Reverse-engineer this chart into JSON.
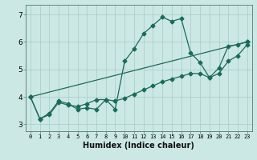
{
  "title": "",
  "xlabel": "Humidex (Indice chaleur)",
  "bg_color": "#cce8e5",
  "grid_color": "#aacfcc",
  "line_color": "#1a6b5a",
  "xmin": -0.5,
  "xmax": 23.5,
  "ymin": 2.75,
  "ymax": 7.35,
  "yticks": [
    3,
    4,
    5,
    6,
    7
  ],
  "xticks": [
    0,
    1,
    2,
    3,
    4,
    5,
    6,
    7,
    8,
    9,
    10,
    11,
    12,
    13,
    14,
    15,
    16,
    17,
    18,
    19,
    20,
    21,
    22,
    23
  ],
  "series1_x": [
    0,
    1,
    2,
    3,
    4,
    5,
    6,
    7,
    8,
    9,
    10,
    11,
    12,
    13,
    14,
    15,
    16,
    17,
    18,
    19,
    20,
    21,
    22,
    23
  ],
  "series1_y": [
    4.0,
    3.2,
    3.4,
    3.85,
    3.75,
    3.55,
    3.6,
    3.55,
    3.9,
    3.55,
    5.3,
    5.75,
    6.3,
    6.6,
    6.9,
    6.75,
    6.85,
    5.6,
    5.25,
    4.7,
    5.05,
    5.85,
    5.9,
    6.0
  ],
  "series2_x": [
    0,
    1,
    2,
    3,
    4,
    5,
    6,
    7,
    8,
    9,
    10,
    11,
    12,
    13,
    14,
    15,
    16,
    17,
    18,
    19,
    20,
    21,
    22,
    23
  ],
  "series2_y": [
    4.0,
    3.2,
    3.35,
    3.8,
    3.7,
    3.65,
    3.75,
    3.9,
    3.9,
    3.85,
    3.95,
    4.1,
    4.25,
    4.4,
    4.55,
    4.65,
    4.75,
    4.85,
    4.85,
    4.7,
    4.85,
    5.3,
    5.5,
    5.9
  ],
  "series3_x": [
    0,
    23
  ],
  "series3_y": [
    4.0,
    6.0
  ],
  "xlabel_fontsize": 7,
  "tick_fontsize_x": 5,
  "tick_fontsize_y": 6.5,
  "marker_size": 2.5,
  "line_width": 0.9
}
